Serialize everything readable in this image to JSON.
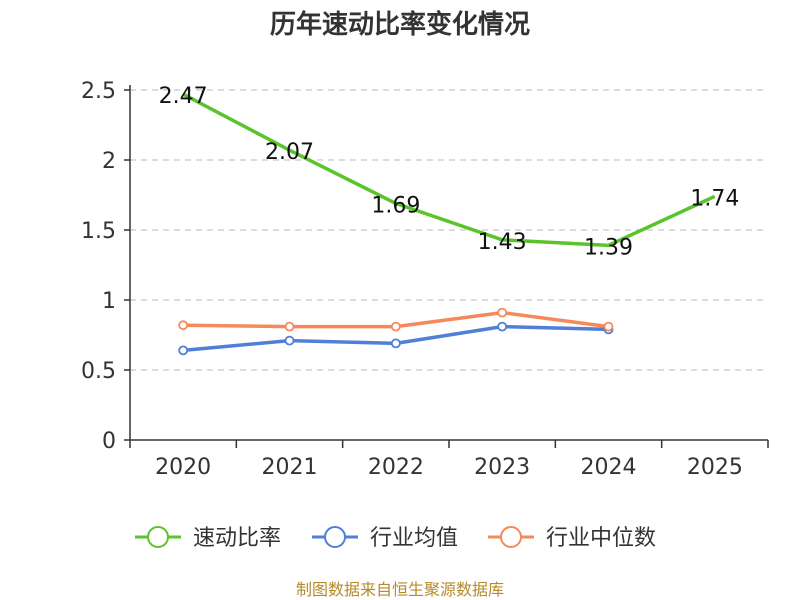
{
  "chart_data": {
    "type": "line",
    "title": "历年速动比率变化情况",
    "categories": [
      "2020",
      "2021",
      "2022",
      "2023",
      "2024",
      "2025"
    ],
    "ylim": [
      0,
      2.5
    ],
    "yticks": [
      "0",
      "0.5",
      "1",
      "1.5",
      "2",
      "2.5"
    ],
    "grid": true,
    "legend_position": "bottom",
    "series": [
      {
        "name": "速动比率",
        "color": "#5bc42d",
        "values": [
          2.47,
          2.07,
          1.69,
          1.43,
          1.39,
          1.74
        ],
        "labels": [
          "2.47",
          "2.07",
          "1.69",
          "1.43",
          "1.39",
          "1.74"
        ],
        "markers": false,
        "show_labels": true
      },
      {
        "name": "行业均值",
        "color": "#4f7fd6",
        "values": [
          0.64,
          0.71,
          0.69,
          0.81,
          0.79,
          null
        ],
        "markers": true,
        "show_labels": false
      },
      {
        "name": "行业中位数",
        "color": "#f5895a",
        "values": [
          0.82,
          0.81,
          0.81,
          0.91,
          0.81,
          null
        ],
        "markers": true,
        "show_labels": false
      }
    ],
    "source": "制图数据来自恒生聚源数据库"
  }
}
